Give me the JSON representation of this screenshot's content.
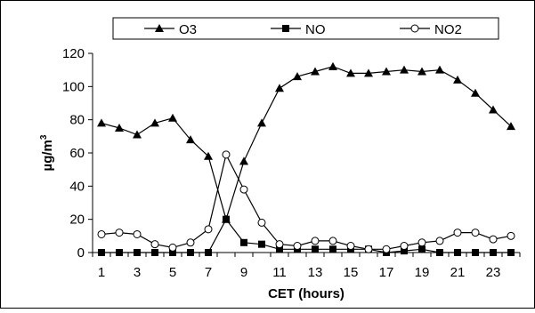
{
  "chart_data": {
    "type": "line",
    "xlabel": "CET (hours)",
    "ylabel_main": "µg/m",
    "ylabel_sup": "3",
    "x": [
      1,
      2,
      3,
      4,
      5,
      6,
      7,
      8,
      9,
      10,
      11,
      12,
      13,
      14,
      15,
      16,
      17,
      18,
      19,
      20,
      21,
      22,
      23,
      24
    ],
    "x_tick_labels": [
      "1",
      "3",
      "5",
      "7",
      "9",
      "11",
      "13",
      "15",
      "17",
      "19",
      "21",
      "23"
    ],
    "y_ticks": [
      "0",
      "20",
      "40",
      "60",
      "80",
      "100",
      "120"
    ],
    "xlim": [
      0.5,
      24.5
    ],
    "ylim": [
      0,
      120
    ],
    "grid": false,
    "legend_position": "top",
    "series": [
      {
        "name": "O3",
        "marker": "filled-triangle",
        "color": "#000000",
        "values": [
          78,
          75,
          71,
          78,
          81,
          68,
          58,
          20,
          55,
          78,
          99,
          106,
          109,
          112,
          108,
          108,
          109,
          110,
          109,
          110,
          104,
          96,
          86,
          76
        ]
      },
      {
        "name": "NO",
        "marker": "filled-square",
        "color": "#000000",
        "values": [
          0,
          0,
          0,
          0,
          0,
          0,
          0,
          20,
          6,
          5,
          2,
          2,
          2,
          2,
          2,
          2,
          0,
          1,
          2,
          0,
          0,
          0,
          0,
          0
        ]
      },
      {
        "name": "NO2",
        "marker": "open-circle",
        "color": "#000000",
        "values": [
          11,
          12,
          11,
          5,
          3,
          6,
          14,
          59,
          38,
          18,
          5,
          4,
          7,
          7,
          4,
          2,
          2,
          4,
          6,
          7,
          12,
          12,
          8,
          10
        ]
      }
    ]
  }
}
